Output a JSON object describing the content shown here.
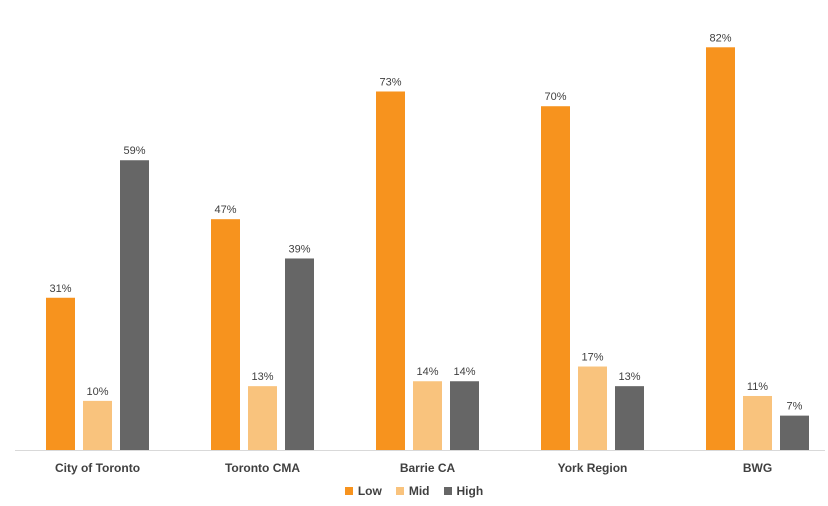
{
  "chart_data": {
    "type": "bar",
    "categories": [
      "City of Toronto",
      "Toronto CMA",
      "Barrie CA",
      "York Region",
      "BWG"
    ],
    "series": [
      {
        "name": "Low",
        "color": "#F7931E",
        "values": [
          31,
          47,
          73,
          70,
          82
        ],
        "labels": [
          "31%",
          "47%",
          "73%",
          "70%",
          "82%"
        ]
      },
      {
        "name": "Mid",
        "color": "#F9C37D",
        "values": [
          10,
          13,
          14,
          17,
          11
        ],
        "labels": [
          "10%",
          "13%",
          "14%",
          "17%",
          "11%"
        ]
      },
      {
        "name": "High",
        "color": "#666666",
        "values": [
          59,
          39,
          14,
          13,
          7
        ],
        "labels": [
          "59%",
          "39%",
          "14%",
          "13%",
          "7%"
        ]
      }
    ],
    "ylim": [
      0,
      90
    ],
    "grid": false,
    "legend_position": "bottom"
  },
  "legend": {
    "low": "Low",
    "mid": "Mid",
    "high": "High"
  }
}
